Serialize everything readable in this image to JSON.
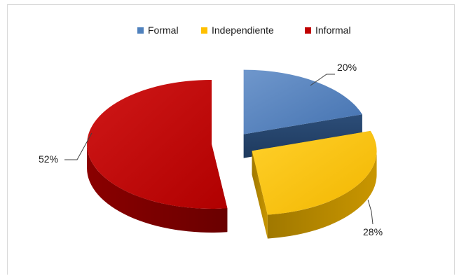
{
  "chart_data": {
    "type": "pie",
    "title": "",
    "legend_position": "top",
    "exploded": true,
    "three_d": true,
    "categories": [
      "Formal",
      "Independiente",
      "Informal"
    ],
    "values": [
      20,
      28,
      52
    ],
    "value_labels": [
      "20%",
      "28%",
      "52%"
    ],
    "colors": [
      "#4f81bd",
      "#ffc000",
      "#c00000"
    ]
  }
}
